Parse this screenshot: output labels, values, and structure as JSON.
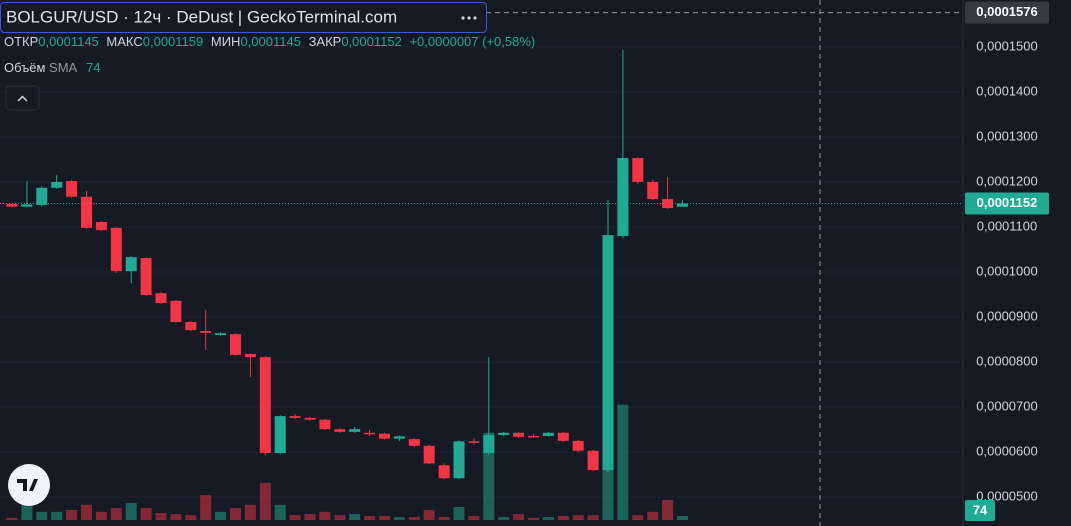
{
  "chart_data": {
    "type": "candlestick",
    "title": "BOLGUR/USD · 12ч · DeDust | GeckoTerminal.com",
    "legend": {
      "open_label": "ОТКР",
      "open": "0,0001145",
      "high_label": "МАКС",
      "high": "0,0001159",
      "low_label": "МИН",
      "low": "0,0001145",
      "close_label": "ЗАКР",
      "close": "0,0001152",
      "change": "+0,0000007 (+0,58%)"
    },
    "volume_legend": {
      "label": "Объём",
      "indicator": "SMA"
    },
    "up_color": "#22ab94",
    "down_color": "#f23645",
    "open": [
      0.0001151,
      0.0001145,
      0.0001149,
      0.0001187,
      0.0001202,
      0.0001167,
      0.0001111,
      0.0001098,
      0.0001002,
      0.0001031,
      9.53e-05,
      9.36e-05,
      8.89e-05,
      8.69e-05,
      8.6e-05,
      8.62e-05,
      8.18e-05,
      8.11e-05,
      5.98e-05,
      6.8e-05,
      6.76e-05,
      6.72e-05,
      6.51e-05,
      6.45e-05,
      6.43e-05,
      6.41e-05,
      6.3e-05,
      6.29e-05,
      6.14e-05,
      5.71e-05,
      5.42e-05,
      6.24e-05,
      5.98e-05,
      6.38e-05,
      6.43e-05,
      6.36e-05,
      6.36e-05,
      6.43e-05,
      6.25e-05,
      6.03e-05,
      5.6e-05,
      0.000108,
      0.0001253,
      0.00012,
      0.0001162,
      0.0001145
    ],
    "high": [
      0.0001153,
      0.0001202,
      0.000119,
      0.0001215,
      0.0001204,
      0.000118,
      0.0001113,
      0.00011,
      0.0001035,
      0.0001033,
      9.55e-05,
      9.38e-05,
      8.91e-05,
      9.16e-05,
      8.66e-05,
      8.64e-05,
      8.2e-05,
      8.13e-05,
      6.82e-05,
      6.84e-05,
      6.79e-05,
      6.74e-05,
      6.53e-05,
      6.56e-05,
      6.49e-05,
      6.43e-05,
      6.37e-05,
      6.31e-05,
      6.16e-05,
      5.75e-05,
      6.26e-05,
      6.3e-05,
      8.11e-05,
      6.45e-05,
      6.45e-05,
      6.4e-05,
      6.45e-05,
      6.45e-05,
      6.27e-05,
      6.05e-05,
      0.000116,
      0.0001493,
      0.0001255,
      0.0001205,
      0.0001211,
      0.0001159
    ],
    "low": [
      0.0001143,
      0.0001143,
      0.0001145,
      0.0001185,
      0.0001165,
      0.0001096,
      0.0001091,
      9.98e-05,
      9.75e-05,
      9.47e-05,
      9.29e-05,
      8.87e-05,
      8.69e-05,
      8.27e-05,
      8.58e-05,
      8.14e-05,
      7.67e-05,
      5.93e-05,
      5.96e-05,
      6.74e-05,
      6.7e-05,
      6.49e-05,
      6.43e-05,
      6.43e-05,
      6.36e-05,
      6.28e-05,
      6.25e-05,
      6.11e-05,
      5.73e-05,
      5.4e-05,
      5.4e-05,
      6.17e-05,
      5.94e-05,
      6.35e-05,
      6.32e-05,
      6.32e-05,
      6.34e-05,
      6.22e-05,
      6e-05,
      5.58e-05,
      5.55e-05,
      0.0001075,
      0.0001196,
      0.000116,
      0.000114,
      0.0001145
    ],
    "close": [
      0.0001145,
      0.000115,
      0.0001187,
      0.00012,
      0.0001167,
      0.0001098,
      0.0001093,
      0.0001002,
      0.0001033,
      9.49e-05,
      9.31e-05,
      8.89e-05,
      8.71e-05,
      8.65e-05,
      8.64e-05,
      8.16e-05,
      8.11e-05,
      5.98e-05,
      6.8e-05,
      6.76e-05,
      6.72e-05,
      6.51e-05,
      6.45e-05,
      6.51e-05,
      6.41e-05,
      6.3e-05,
      6.35e-05,
      6.14e-05,
      5.75e-05,
      5.42e-05,
      6.24e-05,
      6.22e-05,
      6.38e-05,
      6.43e-05,
      6.34e-05,
      6.35e-05,
      6.43e-05,
      6.25e-05,
      6.03e-05,
      5.6e-05,
      0.0001082,
      0.0001253,
      0.00012,
      0.0001162,
      0.0001142,
      0.0001152
    ],
    "volume": [
      40,
      280,
      150,
      150,
      185,
      280,
      150,
      220,
      315,
      220,
      130,
      110,
      90,
      460,
      150,
      220,
      280,
      685,
      280,
      90,
      110,
      150,
      90,
      110,
      75,
      75,
      55,
      55,
      185,
      55,
      240,
      75,
      1610,
      55,
      110,
      40,
      55,
      75,
      90,
      90,
      2400,
      2130,
      90,
      150,
      370,
      74
    ],
    "ylim": [
      4.36e-05,
      0.0001604
    ],
    "yticks": [
      {
        "value": 5e-05,
        "label": "0,0000500"
      },
      {
        "value": 6e-05,
        "label": "0,0000600"
      },
      {
        "value": 7e-05,
        "label": "0,0000700"
      },
      {
        "value": 8e-05,
        "label": "0,0000800"
      },
      {
        "value": 9e-05,
        "label": "0,0000900"
      },
      {
        "value": 0.0001,
        "label": "0,0001000"
      },
      {
        "value": 0.00011,
        "label": "0,0001100"
      },
      {
        "value": 0.00012,
        "label": "0,0001200"
      },
      {
        "value": 0.00013,
        "label": "0,0001300"
      },
      {
        "value": 0.00014,
        "label": "0,0001400"
      },
      {
        "value": 0.00015,
        "label": "0,0001500"
      }
    ],
    "last_price": {
      "value": 0.0001152,
      "label": "0,0001152"
    },
    "crosshair": {
      "value": 0.0001576,
      "label": "0,0001576"
    },
    "grid": true
  }
}
